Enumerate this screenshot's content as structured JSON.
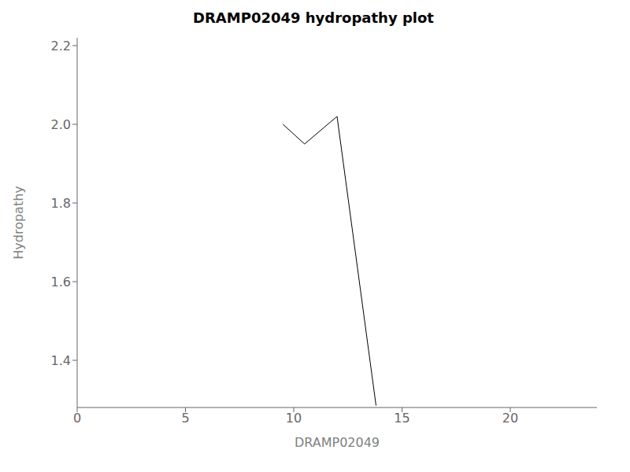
{
  "chart_data": {
    "type": "line",
    "title": "DRAMP02049 hydropathy plot",
    "xlabel": "DRAMP02049",
    "ylabel": "Hydropathy",
    "x": [
      9.5,
      10.5,
      12.0,
      13.8
    ],
    "values": [
      2.0,
      1.95,
      2.02,
      1.285
    ],
    "color": "#000000",
    "xlim": [
      0,
      24
    ],
    "ylim": [
      1.28,
      2.22
    ],
    "xticks": [
      0,
      5,
      10,
      15,
      20
    ],
    "yticks": [
      1.4,
      1.6,
      1.8,
      {
        "value": 2.0,
        "label": "2.0"
      },
      2.2
    ],
    "grid": false
  }
}
